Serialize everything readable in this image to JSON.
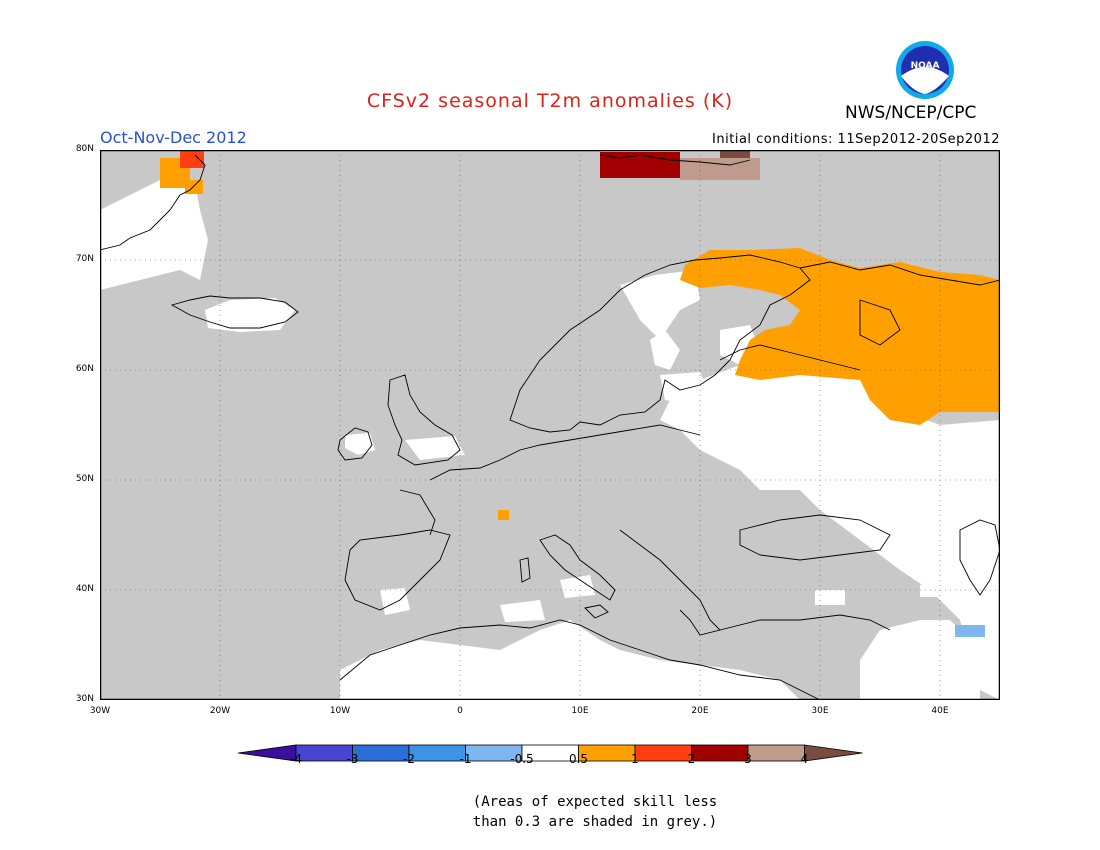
{
  "title": "CFSv2 seasonal T2m anomalies (K)",
  "season": "Oct-Nov-Dec 2012",
  "initial_conditions": "Initial conditions: 11Sep2012-20Sep2012",
  "agency": "NWS/NCEP/CPC",
  "logo_text": "NOAA",
  "lat_labels": [
    "80N",
    "70N",
    "60N",
    "50N",
    "40N",
    "30N"
  ],
  "lon_labels": [
    "30W",
    "20W",
    "10W",
    "0",
    "10E",
    "20E",
    "30E",
    "40E"
  ],
  "legend": {
    "labels": [
      "-4",
      "-3",
      "-2",
      "-1",
      "-0.5",
      "0.5",
      "1",
      "2",
      "3",
      "4"
    ],
    "colors": [
      "#3a0f9e",
      "#4646d2",
      "#2a6fd8",
      "#3d93e8",
      "#7fb6f0",
      "#ffffff",
      "#ff9f00",
      "#ff3f10",
      "#a00000",
      "#c09a8c",
      "#7a4c3e"
    ]
  },
  "note_lines": [
    "(Areas of expected skill less",
    "than 0.3 are shaded in grey.)"
  ],
  "map_colors": {
    "grey_skill": "#c8c8c8",
    "white": "#ffffff",
    "orange": "#ff9f00",
    "red": "#ff3f10",
    "dark_red": "#a00000",
    "tan": "#c09a8c",
    "light_blue": "#7fb6f0"
  }
}
